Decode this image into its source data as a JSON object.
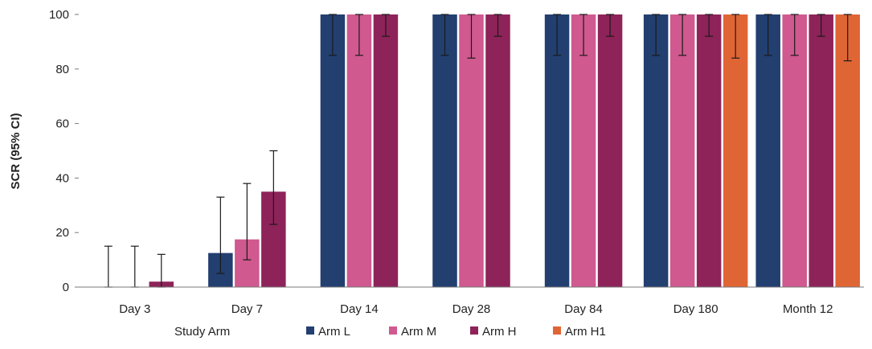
{
  "chart_data": {
    "type": "bar",
    "title": "",
    "ylabel": "SCR (95% CI)",
    "xlabel": "",
    "ylim": [
      0,
      100
    ],
    "yticks": [
      0,
      20,
      40,
      60,
      80,
      100
    ],
    "grid": false,
    "legend_position": "bottom",
    "legend_title": "Study Arm",
    "categories": [
      "Day 3",
      "Day 7",
      "Day 14",
      "Day 28",
      "Day 84",
      "Day 180",
      "Month 12"
    ],
    "series": [
      {
        "name": "Arm L",
        "color": "#223f70",
        "values": [
          0,
          12.5,
          100,
          100,
          100,
          100,
          100
        ],
        "ci_low": [
          0,
          5,
          85,
          85,
          85,
          85,
          85
        ],
        "ci_high": [
          15,
          33,
          100,
          100,
          100,
          100,
          100
        ]
      },
      {
        "name": "Arm M",
        "color": "#d0598f",
        "values": [
          0,
          17.5,
          100,
          100,
          100,
          100,
          100
        ],
        "ci_low": [
          0,
          10,
          85,
          84,
          85,
          85,
          85
        ],
        "ci_high": [
          15,
          38,
          100,
          100,
          100,
          100,
          100
        ]
      },
      {
        "name": "Arm H",
        "color": "#8d2359",
        "values": [
          2,
          35,
          100,
          100,
          100,
          100,
          100
        ],
        "ci_low": [
          0,
          23,
          92,
          92,
          92,
          92,
          92
        ],
        "ci_high": [
          12,
          50,
          100,
          100,
          100,
          100,
          100
        ]
      },
      {
        "name": "Arm H1",
        "color": "#e06535",
        "values": [
          null,
          null,
          null,
          null,
          null,
          100,
          100
        ],
        "ci_low": [
          null,
          null,
          null,
          null,
          null,
          84,
          83
        ],
        "ci_high": [
          null,
          null,
          null,
          null,
          null,
          100,
          100
        ]
      }
    ]
  }
}
